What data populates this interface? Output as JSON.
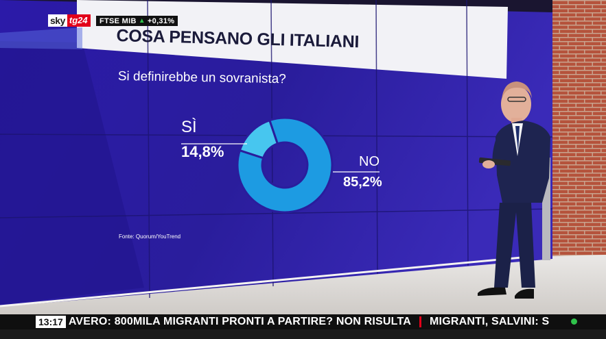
{
  "broadcaster": {
    "logo_left": "sky",
    "logo_right": "tg24",
    "brand_red": "#e2001a"
  },
  "market": {
    "index": "FTSE MIB",
    "change": "+0,31%",
    "trend": "up",
    "trend_icon": "arrow-up-icon"
  },
  "wall_graphic": {
    "title": "COSA PENSANO GLI ITALIANI",
    "question": "Si definirebbe un sovranista?",
    "source": "Fonte: Quorum/YouTrend",
    "chart_data": {
      "type": "pie",
      "donut": true,
      "categories": [
        "SÌ",
        "NO"
      ],
      "values": [
        14.8,
        85.2
      ],
      "value_labels": [
        "14,8%",
        "85,2%"
      ],
      "colors": [
        "#47c6ef",
        "#1d9be2"
      ],
      "title": "Si definirebbe un sovranista?"
    }
  },
  "ticker": {
    "time": "13:17",
    "headline_1": "AVERO: 800MILA MIGRANTI PRONTI A PARTIRE? NON RISULTA",
    "headline_2": "MIGRANTI, SALVINI: S"
  }
}
